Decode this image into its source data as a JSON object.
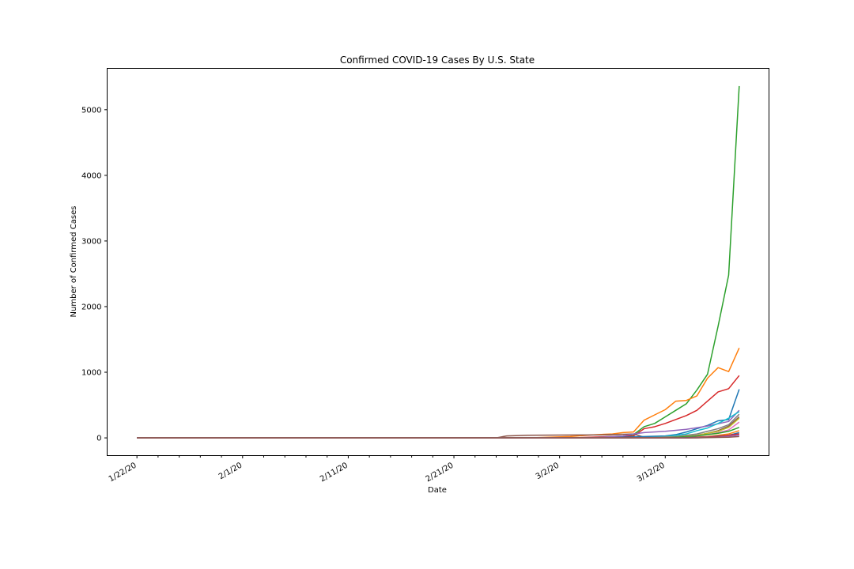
{
  "chart_data": {
    "type": "line",
    "title": "Confirmed COVID-19 Cases By U.S. State",
    "xlabel": "Date",
    "ylabel": "Number of Confirmed Cases",
    "x_start": "1/22/20",
    "x_end": "3/19/20",
    "x_ticks_major": [
      "1/22/20",
      "2/1/20",
      "2/11/20",
      "2/21/20",
      "3/2/20",
      "3/12/20"
    ],
    "y_ticks": [
      0,
      1000,
      2000,
      3000,
      4000,
      5000
    ],
    "ylim": [
      -270,
      5630
    ],
    "grid": false,
    "legend": "none",
    "series": [
      {
        "color": "#2ca02c",
        "points": [
          [
            "1/22/20",
            0
          ],
          [
            "2/28/20",
            0
          ],
          [
            "3/3/20",
            0
          ],
          [
            "3/5/20",
            5
          ],
          [
            "3/8/20",
            30
          ],
          [
            "3/9/20",
            50
          ],
          [
            "3/10/20",
            170
          ],
          [
            "3/11/20",
            220
          ],
          [
            "3/12/20",
            320
          ],
          [
            "3/13/20",
            420
          ],
          [
            "3/14/20",
            520
          ],
          [
            "3/15/20",
            730
          ],
          [
            "3/16/20",
            970
          ],
          [
            "3/17/20",
            1700
          ],
          [
            "3/18/20",
            2480
          ],
          [
            "3/19/20",
            5360
          ]
        ]
      },
      {
        "color": "#ff7f0e",
        "points": [
          [
            "1/22/20",
            0
          ],
          [
            "2/28/20",
            0
          ],
          [
            "3/1/20",
            10
          ],
          [
            "3/3/20",
            20
          ],
          [
            "3/5/20",
            45
          ],
          [
            "3/7/20",
            60
          ],
          [
            "3/8/20",
            80
          ],
          [
            "3/9/20",
            90
          ],
          [
            "3/10/20",
            270
          ],
          [
            "3/11/20",
            350
          ],
          [
            "3/12/20",
            430
          ],
          [
            "3/13/20",
            560
          ],
          [
            "3/14/20",
            570
          ],
          [
            "3/15/20",
            640
          ],
          [
            "3/16/20",
            910
          ],
          [
            "3/17/20",
            1070
          ],
          [
            "3/18/20",
            1010
          ],
          [
            "3/19/20",
            1370
          ]
        ]
      },
      {
        "color": "#d62728",
        "points": [
          [
            "1/22/20",
            0
          ],
          [
            "2/28/20",
            0
          ],
          [
            "3/4/20",
            5
          ],
          [
            "3/7/20",
            20
          ],
          [
            "3/9/20",
            30
          ],
          [
            "3/10/20",
            140
          ],
          [
            "3/11/20",
            170
          ],
          [
            "3/12/20",
            220
          ],
          [
            "3/13/20",
            280
          ],
          [
            "3/14/20",
            340
          ],
          [
            "3/15/20",
            420
          ],
          [
            "3/16/20",
            560
          ],
          [
            "3/17/20",
            700
          ],
          [
            "3/18/20",
            750
          ],
          [
            "3/19/20",
            950
          ]
        ]
      },
      {
        "color": "#8c564b",
        "points": [
          [
            "1/22/20",
            0
          ],
          [
            "2/25/20",
            0
          ],
          [
            "2/26/20",
            30
          ],
          [
            "2/28/20",
            40
          ],
          [
            "3/4/20",
            45
          ],
          [
            "3/6/20",
            45
          ],
          [
            "3/9/20",
            60
          ],
          [
            "3/10/20",
            10
          ],
          [
            "3/14/20",
            20
          ],
          [
            "3/15/20",
            40
          ],
          [
            "3/16/20",
            70
          ],
          [
            "3/17/20",
            110
          ],
          [
            "3/18/20",
            180
          ],
          [
            "3/19/20",
            320
          ]
        ]
      },
      {
        "color": "#1f77b4",
        "points": [
          [
            "1/22/20",
            0
          ],
          [
            "3/5/20",
            0
          ],
          [
            "3/8/20",
            10
          ],
          [
            "3/10/20",
            20
          ],
          [
            "3/12/20",
            30
          ],
          [
            "3/13/20",
            50
          ],
          [
            "3/14/20",
            90
          ],
          [
            "3/15/20",
            140
          ],
          [
            "3/16/20",
            190
          ],
          [
            "3/17/20",
            260
          ],
          [
            "3/18/20",
            280
          ],
          [
            "3/19/20",
            740
          ]
        ]
      },
      {
        "color": "#9467bd",
        "points": [
          [
            "1/22/20",
            0
          ],
          [
            "3/5/20",
            0
          ],
          [
            "3/8/20",
            30
          ],
          [
            "3/9/20",
            60
          ],
          [
            "3/10/20",
            80
          ],
          [
            "3/12/20",
            100
          ],
          [
            "3/14/20",
            130
          ],
          [
            "3/16/20",
            180
          ],
          [
            "3/18/20",
            250
          ],
          [
            "3/19/20",
            420
          ]
        ]
      },
      {
        "color": "#17becf",
        "points": [
          [
            "1/22/20",
            0
          ],
          [
            "3/10/20",
            0
          ],
          [
            "3/12/20",
            20
          ],
          [
            "3/14/20",
            60
          ],
          [
            "3/15/20",
            110
          ],
          [
            "3/16/20",
            150
          ],
          [
            "3/17/20",
            220
          ],
          [
            "3/18/20",
            300
          ],
          [
            "3/19/20",
            400
          ]
        ]
      },
      {
        "color": "#7f7f7f",
        "points": [
          [
            "1/22/20",
            0
          ],
          [
            "3/10/20",
            0
          ],
          [
            "3/13/20",
            20
          ],
          [
            "3/15/20",
            60
          ],
          [
            "3/17/20",
            140
          ],
          [
            "3/18/20",
            200
          ],
          [
            "3/19/20",
            360
          ]
        ]
      },
      {
        "color": "#bcbd22",
        "points": [
          [
            "1/22/20",
            0
          ],
          [
            "3/11/20",
            0
          ],
          [
            "3/13/20",
            10
          ],
          [
            "3/15/20",
            40
          ],
          [
            "3/17/20",
            100
          ],
          [
            "3/18/20",
            160
          ],
          [
            "3/19/20",
            300
          ]
        ]
      },
      {
        "color": "#e377c2",
        "points": [
          [
            "1/22/20",
            0
          ],
          [
            "3/12/20",
            0
          ],
          [
            "3/14/20",
            20
          ],
          [
            "3/16/20",
            50
          ],
          [
            "3/17/20",
            80
          ],
          [
            "3/18/20",
            120
          ],
          [
            "3/19/20",
            240
          ]
        ]
      },
      {
        "color": "#2ca02c",
        "points": [
          [
            "1/22/20",
            0
          ],
          [
            "3/12/20",
            0
          ],
          [
            "3/15/20",
            30
          ],
          [
            "3/17/20",
            70
          ],
          [
            "3/18/20",
            100
          ],
          [
            "3/19/20",
            160
          ]
        ]
      },
      {
        "color": "#ff7f0e",
        "points": [
          [
            "1/22/20",
            0
          ],
          [
            "3/13/20",
            0
          ],
          [
            "3/16/20",
            20
          ],
          [
            "3/18/20",
            60
          ],
          [
            "3/19/20",
            110
          ]
        ]
      },
      {
        "color": "#1f77b4",
        "points": [
          [
            "1/22/20",
            0
          ],
          [
            "3/13/20",
            0
          ],
          [
            "3/16/20",
            15
          ],
          [
            "3/18/20",
            40
          ],
          [
            "3/19/20",
            80
          ]
        ]
      },
      {
        "color": "#d62728",
        "points": [
          [
            "1/22/20",
            0
          ],
          [
            "3/14/20",
            0
          ],
          [
            "3/17/20",
            20
          ],
          [
            "3/18/20",
            40
          ],
          [
            "3/19/20",
            60
          ]
        ]
      },
      {
        "color": "#9467bd",
        "points": [
          [
            "1/22/20",
            0
          ],
          [
            "3/14/20",
            0
          ],
          [
            "3/17/20",
            10
          ],
          [
            "3/19/20",
            40
          ]
        ]
      },
      {
        "color": "#8c564b",
        "points": [
          [
            "1/22/20",
            0
          ],
          [
            "3/15/20",
            0
          ],
          [
            "3/18/20",
            10
          ],
          [
            "3/19/20",
            20
          ]
        ]
      }
    ]
  }
}
